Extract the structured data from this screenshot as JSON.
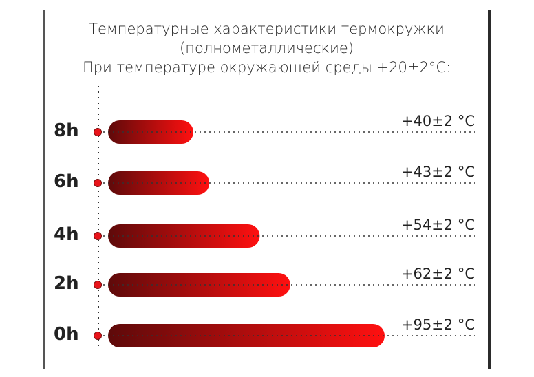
{
  "title_lines": [
    "Температурные характеристики термокружки",
    "(полнометаллические)",
    "При температуре окружающей среды +20±2°C:"
  ],
  "colors": {
    "bar_dark": "#6a0a0a",
    "bar_light": "#ff1010",
    "dot": "#e8141a"
  },
  "chart_data": {
    "type": "bar",
    "orientation": "horizontal",
    "categories": [
      "8h",
      "6h",
      "4h",
      "2h",
      "0h"
    ],
    "values": [
      40,
      43,
      54,
      62,
      95
    ],
    "labels": [
      "+40±2 °C",
      "+43±2 °C",
      "+54±2 °C",
      "+62±2 °C",
      "+95±2 °C"
    ],
    "unit": "°C",
    "grid": false
  }
}
